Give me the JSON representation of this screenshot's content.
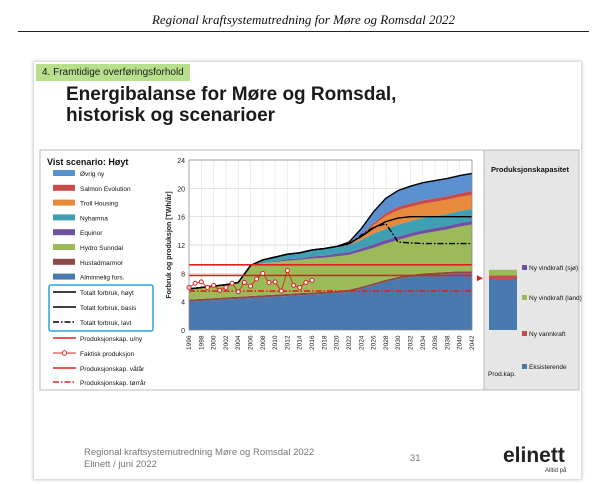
{
  "document": {
    "header": "Regional kraftsystemutredning for Møre og Romsdal 2022"
  },
  "slide": {
    "section": "4. Framtidige overføringsforhold",
    "title_line1": "Energibalanse for Møre og Romsdal,",
    "title_line2": "historisk og scenarioer",
    "footer_line1": "Regional kraftsystemutredning Møre og Romsdal 2022",
    "footer_line2": "Elinett / juni 2022",
    "page_number": "31",
    "logo": "elinett",
    "logo_tagline": "Alltid på"
  },
  "chart_data": {
    "type": "area",
    "scenario_label": "Vist scenario: Høyt",
    "ylabel": "Forbruk og produksjon [TWh/år]",
    "ylim": [
      0,
      24
    ],
    "yticks": [
      0,
      4,
      8,
      12,
      16,
      20,
      24
    ],
    "x": [
      1996,
      1998,
      2000,
      2002,
      2004,
      2006,
      2008,
      2010,
      2012,
      2014,
      2016,
      2018,
      2020,
      2022,
      2024,
      2026,
      2028,
      2030,
      2032,
      2034,
      2036,
      2038,
      2040,
      2042
    ],
    "grid": true,
    "legend_position": "left",
    "stack_colors": [
      "#4a79b0",
      "#8a4a4a",
      "#9bbb59",
      "#7050a0",
      "#3fa0b4",
      "#e88a3c",
      "#c84a4a",
      "#5a8fd0"
    ],
    "stacked_series": [
      {
        "name": "Alminnelig fors.",
        "values": [
          4.0,
          4.1,
          4.2,
          4.3,
          4.4,
          4.5,
          4.6,
          4.7,
          4.8,
          4.9,
          5.0,
          5.1,
          5.2,
          5.4,
          5.8,
          6.3,
          6.8,
          7.2,
          7.5,
          7.7,
          7.8,
          7.9,
          8.0,
          8.0
        ]
      },
      {
        "name": "Hustadmarmor",
        "values": [
          0.3,
          0.3,
          0.3,
          0.3,
          0.3,
          0.3,
          0.3,
          0.3,
          0.3,
          0.3,
          0.3,
          0.3,
          0.3,
          0.3,
          0.3,
          0.3,
          0.3,
          0.3,
          0.3,
          0.3,
          0.3,
          0.3,
          0.3,
          0.3
        ]
      },
      {
        "name": "Hydro Sunndal",
        "values": [
          1.5,
          1.6,
          1.7,
          1.8,
          2.0,
          4.3,
          4.5,
          4.6,
          4.7,
          4.7,
          4.8,
          4.8,
          4.9,
          4.9,
          5.0,
          5.0,
          5.1,
          5.2,
          5.4,
          5.6,
          5.8,
          6.0,
          6.3,
          6.6
        ]
      },
      {
        "name": "Equinor",
        "values": [
          0.0,
          0.0,
          0.0,
          0.0,
          0.0,
          0.0,
          0.0,
          0.1,
          0.2,
          0.2,
          0.3,
          0.3,
          0.4,
          0.4,
          0.4,
          0.5,
          0.5,
          0.5,
          0.5,
          0.5,
          0.5,
          0.5,
          0.5,
          0.5
        ]
      },
      {
        "name": "Nyhamna",
        "values": [
          0.0,
          0.0,
          0.0,
          0.0,
          0.0,
          0.0,
          0.5,
          0.6,
          0.7,
          0.8,
          0.9,
          1.0,
          1.0,
          1.0,
          1.2,
          1.5,
          1.6,
          1.7,
          1.7,
          1.7,
          1.7,
          1.7,
          1.7,
          1.7
        ]
      },
      {
        "name": "Troll Housing",
        "values": [
          0.0,
          0.0,
          0.0,
          0.0,
          0.0,
          0.0,
          0.0,
          0.0,
          0.0,
          0.0,
          0.0,
          0.0,
          0.0,
          0.0,
          0.5,
          1.2,
          1.8,
          2.0,
          2.0,
          2.0,
          2.0,
          2.0,
          2.0,
          2.0
        ]
      },
      {
        "name": "Salmon Evolution",
        "values": [
          0.0,
          0.0,
          0.0,
          0.0,
          0.0,
          0.0,
          0.0,
          0.0,
          0.0,
          0.0,
          0.0,
          0.0,
          0.0,
          0.1,
          0.2,
          0.3,
          0.4,
          0.5,
          0.5,
          0.5,
          0.5,
          0.5,
          0.5,
          0.5
        ]
      },
      {
        "name": "Øvrig ny",
        "values": [
          0.0,
          0.0,
          0.0,
          0.0,
          0.0,
          0.0,
          0.0,
          0.0,
          0.0,
          0.0,
          0.0,
          0.0,
          0.0,
          0.3,
          0.9,
          1.6,
          2.1,
          2.3,
          2.4,
          2.5,
          2.5,
          2.5,
          2.5,
          2.5
        ]
      }
    ],
    "line_series": [
      {
        "name": "Totalt forbruk, høyt",
        "style": "solid",
        "color": "#000000",
        "values": [
          5.8,
          6.0,
          6.2,
          6.4,
          6.7,
          9.1,
          9.9,
          10.3,
          10.7,
          10.9,
          11.3,
          11.5,
          11.8,
          12.4,
          14.3,
          16.7,
          18.6,
          19.7,
          20.3,
          20.8,
          21.1,
          21.4,
          21.8,
          22.1
        ]
      },
      {
        "name": "Totalt forbruk, basis",
        "style": "solid",
        "color": "#000000",
        "values": [
          5.8,
          6.0,
          6.2,
          6.4,
          6.7,
          9.1,
          9.9,
          10.3,
          10.7,
          10.9,
          11.3,
          11.5,
          11.8,
          12.2,
          13.2,
          14.4,
          15.3,
          15.8,
          16.0,
          16.0,
          16.0,
          16.0,
          16.0,
          16.0
        ]
      },
      {
        "name": "Totalt forbruk, lavt",
        "style": "dashdot",
        "color": "#000000",
        "values": [
          5.8,
          6.0,
          6.2,
          6.4,
          6.7,
          9.1,
          9.9,
          10.3,
          10.7,
          10.9,
          11.3,
          11.5,
          11.8,
          12.1,
          13.4,
          14.5,
          15.0,
          12.4,
          12.3,
          12.2,
          12.2,
          12.2,
          12.2,
          12.2
        ]
      },
      {
        "name": "Produksjonskap. u/ny",
        "style": "solid",
        "color": "#e02020",
        "values": [
          7.7,
          7.7,
          7.7,
          7.7,
          7.7,
          7.7,
          7.7,
          7.7,
          7.7,
          7.7,
          7.7,
          7.7,
          7.7,
          7.7,
          7.7,
          7.7,
          7.7,
          7.7,
          7.7,
          7.7,
          7.7,
          7.7,
          7.7,
          7.7
        ]
      },
      {
        "name": "Produksjonskap. våtår",
        "style": "solid",
        "color": "#e02020",
        "values": [
          9.2,
          9.2,
          9.2,
          9.2,
          9.2,
          9.2,
          9.2,
          9.2,
          9.2,
          9.2,
          9.2,
          9.2,
          9.2,
          9.2,
          9.2,
          9.2,
          9.2,
          9.2,
          9.2,
          9.2,
          9.2,
          9.2,
          9.2,
          9.2
        ]
      },
      {
        "name": "Produksjonskap. tørrår",
        "style": "dashdot",
        "color": "#e02020",
        "values": [
          5.5,
          5.5,
          5.5,
          5.5,
          5.5,
          5.5,
          5.5,
          5.5,
          5.5,
          5.5,
          5.5,
          5.5,
          5.5,
          5.5,
          5.5,
          5.5,
          5.5,
          5.5,
          5.5,
          5.5,
          5.5,
          5.5,
          5.5,
          5.5
        ]
      }
    ],
    "faktisk_produksjon": {
      "name": "Faktisk produksjon",
      "x": [
        1996,
        1997,
        1998,
        1999,
        2000,
        2001,
        2002,
        2003,
        2004,
        2005,
        2006,
        2007,
        2008,
        2009,
        2010,
        2011,
        2012,
        2013,
        2014,
        2015,
        2016
      ],
      "values": [
        6.0,
        6.6,
        6.8,
        6.0,
        6.3,
        5.6,
        6.0,
        6.6,
        5.4,
        6.7,
        6.2,
        7.2,
        8.0,
        6.7,
        6.8,
        5.5,
        8.4,
        6.3,
        6.0,
        6.7,
        7.0
      ]
    },
    "capacity_panel": {
      "title": "Produksjonskapasitet",
      "bar_label": "Prod.kap.",
      "segments": [
        {
          "name": "Eksisterende",
          "value": 7.2,
          "color": "#4a79b0"
        },
        {
          "name": "Ny vannkraft",
          "value": 0.5,
          "color": "#c84a4a"
        },
        {
          "name": "Ny vindkraft (land)",
          "value": 0.8,
          "color": "#9bbb59"
        },
        {
          "name": "Ny vindkraft (sjø)",
          "value": 0.0,
          "color": "#7050a0"
        }
      ]
    }
  }
}
